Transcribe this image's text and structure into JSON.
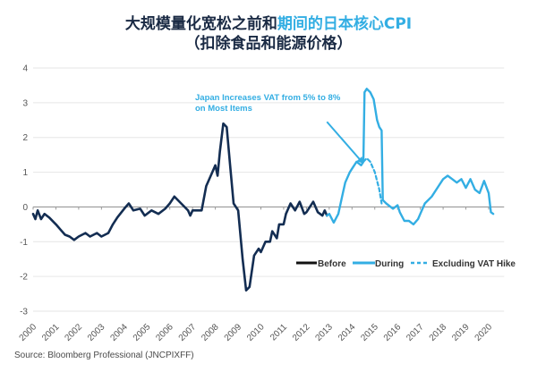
{
  "title": {
    "line1_dark": "大规模量化宽松之前和",
    "line1_highlight": "期间的日本核心CPI",
    "line2": "（扣除食品和能源价格）"
  },
  "source": "Source: Bloomberg Professional (JNCPIXFF)",
  "colors": {
    "before": "#132d52",
    "during": "#33aee3",
    "grid": "#e6e6e6",
    "zero_axis": "#999999"
  },
  "chart_data": {
    "type": "line",
    "title": "大规模量化宽松之前和期间的日本核心CPI（扣除食品和能源价格）",
    "xlabel": "",
    "ylabel": "",
    "xlim": [
      2000,
      2020.6
    ],
    "ylim": [
      -3,
      4
    ],
    "yticks": [
      4,
      3,
      2,
      1,
      0,
      -1,
      -2,
      -3
    ],
    "xticks": [
      "2000",
      "2001",
      "2002",
      "2003",
      "2004",
      "2005",
      "2006",
      "2007",
      "2008",
      "2009",
      "2010",
      "2011",
      "2012",
      "2013",
      "2014",
      "2015",
      "2016",
      "2017",
      "2018",
      "2019",
      "2020"
    ],
    "grid": true,
    "legend_position": "bottom-right",
    "series": [
      {
        "name": "Before",
        "style": "solid",
        "points": [
          [
            2000.0,
            -0.2
          ],
          [
            2000.1,
            -0.35
          ],
          [
            2000.2,
            -0.1
          ],
          [
            2000.35,
            -0.35
          ],
          [
            2000.5,
            -0.2
          ],
          [
            2000.7,
            -0.3
          ],
          [
            2001.0,
            -0.5
          ],
          [
            2001.2,
            -0.65
          ],
          [
            2001.4,
            -0.8
          ],
          [
            2001.6,
            -0.85
          ],
          [
            2001.8,
            -0.95
          ],
          [
            2002.0,
            -0.85
          ],
          [
            2002.3,
            -0.75
          ],
          [
            2002.5,
            -0.85
          ],
          [
            2002.8,
            -0.75
          ],
          [
            2003.0,
            -0.85
          ],
          [
            2003.3,
            -0.75
          ],
          [
            2003.5,
            -0.5
          ],
          [
            2003.7,
            -0.3
          ],
          [
            2004.0,
            -0.05
          ],
          [
            2004.2,
            0.1
          ],
          [
            2004.4,
            -0.1
          ],
          [
            2004.7,
            -0.05
          ],
          [
            2004.9,
            -0.25
          ],
          [
            2005.2,
            -0.1
          ],
          [
            2005.5,
            -0.2
          ],
          [
            2005.8,
            -0.05
          ],
          [
            2006.0,
            0.1
          ],
          [
            2006.2,
            0.3
          ],
          [
            2006.5,
            0.1
          ],
          [
            2006.8,
            -0.1
          ],
          [
            2006.9,
            -0.25
          ],
          [
            2007.0,
            -0.1
          ],
          [
            2007.4,
            -0.1
          ],
          [
            2007.6,
            0.6
          ],
          [
            2007.8,
            0.9
          ],
          [
            2008.0,
            1.2
          ],
          [
            2008.1,
            0.9
          ],
          [
            2008.2,
            1.6
          ],
          [
            2008.35,
            2.4
          ],
          [
            2008.5,
            2.3
          ],
          [
            2008.65,
            1.2
          ],
          [
            2008.8,
            0.1
          ],
          [
            2009.0,
            -0.1
          ],
          [
            2009.2,
            -1.5
          ],
          [
            2009.35,
            -2.4
          ],
          [
            2009.5,
            -2.3
          ],
          [
            2009.7,
            -1.4
          ],
          [
            2009.9,
            -1.2
          ],
          [
            2010.0,
            -1.3
          ],
          [
            2010.2,
            -1.0
          ],
          [
            2010.4,
            -1.0
          ],
          [
            2010.5,
            -0.7
          ],
          [
            2010.7,
            -0.9
          ],
          [
            2010.8,
            -0.5
          ],
          [
            2011.0,
            -0.5
          ],
          [
            2011.1,
            -0.2
          ],
          [
            2011.3,
            0.1
          ],
          [
            2011.5,
            -0.1
          ],
          [
            2011.7,
            0.15
          ],
          [
            2011.9,
            -0.2
          ],
          [
            2012.0,
            -0.15
          ],
          [
            2012.3,
            0.15
          ],
          [
            2012.5,
            -0.15
          ],
          [
            2012.7,
            -0.25
          ],
          [
            2012.8,
            -0.1
          ],
          [
            2012.9,
            -0.25
          ]
        ]
      },
      {
        "name": "During",
        "style": "solid",
        "points": [
          [
            2012.9,
            -0.25
          ],
          [
            2013.0,
            -0.2
          ],
          [
            2013.2,
            -0.45
          ],
          [
            2013.4,
            -0.2
          ],
          [
            2013.6,
            0.4
          ],
          [
            2013.7,
            0.7
          ],
          [
            2013.9,
            1.0
          ],
          [
            2014.0,
            1.1
          ],
          [
            2014.2,
            1.3
          ],
          [
            2014.4,
            1.2
          ],
          [
            2014.5,
            1.3
          ],
          [
            2014.55,
            3.3
          ],
          [
            2014.65,
            3.4
          ],
          [
            2014.8,
            3.3
          ],
          [
            2014.95,
            3.1
          ],
          [
            2015.1,
            2.5
          ],
          [
            2015.2,
            2.3
          ],
          [
            2015.3,
            2.2
          ],
          [
            2015.35,
            0.2
          ],
          [
            2015.5,
            0.1
          ],
          [
            2015.8,
            -0.05
          ],
          [
            2016.0,
            0.05
          ],
          [
            2016.1,
            -0.15
          ],
          [
            2016.3,
            -0.4
          ],
          [
            2016.5,
            -0.4
          ],
          [
            2016.7,
            -0.5
          ],
          [
            2016.9,
            -0.35
          ],
          [
            2017.0,
            -0.2
          ],
          [
            2017.2,
            0.1
          ],
          [
            2017.5,
            0.3
          ],
          [
            2017.8,
            0.6
          ],
          [
            2018.0,
            0.8
          ],
          [
            2018.2,
            0.9
          ],
          [
            2018.4,
            0.8
          ],
          [
            2018.6,
            0.7
          ],
          [
            2018.8,
            0.8
          ],
          [
            2019.0,
            0.55
          ],
          [
            2019.2,
            0.8
          ],
          [
            2019.4,
            0.5
          ],
          [
            2019.6,
            0.4
          ],
          [
            2019.8,
            0.75
          ],
          [
            2020.0,
            0.4
          ],
          [
            2020.1,
            -0.15
          ],
          [
            2020.2,
            -0.2
          ]
        ]
      },
      {
        "name": "Excluding VAT Hike",
        "style": "dashed",
        "points": [
          [
            2014.5,
            1.3
          ],
          [
            2014.65,
            1.4
          ],
          [
            2014.8,
            1.3
          ],
          [
            2015.0,
            1.0
          ],
          [
            2015.2,
            0.5
          ],
          [
            2015.3,
            0.1
          ]
        ]
      }
    ],
    "annotations": [
      {
        "text_line1": "Japan Increases VAT from 5% to 8%",
        "text_line2": "on Most Items",
        "arrow_from": [
          2012.9,
          2.45
        ],
        "arrow_to": [
          2014.5,
          1.25
        ]
      }
    ],
    "legend": [
      "Before",
      "During",
      "Excluding VAT Hike"
    ]
  }
}
